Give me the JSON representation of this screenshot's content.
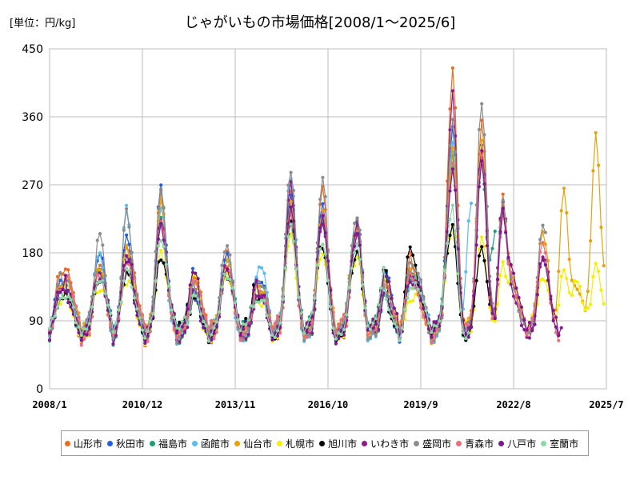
{
  "header": {
    "unit": "[単位：円/kg]",
    "title": "じゃがいもの市場価格[2008/1～2025/6]"
  },
  "chart_data": {
    "type": "line",
    "title": "じゃがいもの市場価格[2008/1～2025/6]",
    "unit": "[単位：円/kg]",
    "xlabel": "",
    "ylabel": "",
    "ylim": [
      0,
      450
    ],
    "yticks": [
      0,
      90,
      180,
      270,
      360,
      450
    ],
    "xlim": [
      "2008/1",
      "2025/7"
    ],
    "xticks": [
      "2008/1",
      "2010/12",
      "2013/11",
      "2016/10",
      "2019/9",
      "2022/8",
      "2025/7"
    ],
    "grid": true,
    "legend_position": "bottom",
    "series": [
      {
        "name": "山形市",
        "color": "#ef6c1f",
        "end": "2022/7",
        "peaks": {
          "2008/5": 157,
          "2009/8": 165,
          "2010/6": 190,
          "2011/7": 260,
          "2013/8": 180,
          "2014/9": 125,
          "2015/8": 262,
          "2016/8": 265,
          "2017/9": 225,
          "2019/5": 175,
          "2020/9": 425,
          "2021/8": 355,
          "2022/4": 255
        }
      },
      {
        "name": "秋田市",
        "color": "#1f5fe0",
        "end": "2022/4",
        "peaks": {
          "2008/5": 145,
          "2009/8": 178,
          "2010/6": 205,
          "2011/7": 265,
          "2013/8": 175,
          "2014/9": 140,
          "2015/8": 255,
          "2016/8": 240,
          "2017/9": 220,
          "2019/5": 160,
          "2020/9": 345,
          "2021/8": 320,
          "2022/4": 230
        }
      },
      {
        "name": "福島市",
        "color": "#1f9f73",
        "end": "2022/1",
        "peaks": {
          "2008/5": 135,
          "2009/8": 155,
          "2010/6": 175,
          "2011/7": 230,
          "2013/8": 160,
          "2014/9": 125,
          "2015/8": 230,
          "2016/8": 225,
          "2017/9": 210,
          "2019/5": 145,
          "2020/9": 310,
          "2021/8": 300,
          "2022/1": 210
        }
      },
      {
        "name": "函館市",
        "color": "#5bbbf0",
        "end": "2021/4",
        "peaks": {
          "2008/5": 130,
          "2009/8": 175,
          "2010/6": 240,
          "2011/7": 240,
          "2013/8": 170,
          "2014/9": 165,
          "2015/8": 282,
          "2016/8": 230,
          "2017/9": 215,
          "2019/5": 150,
          "2020/9": 330,
          "2021/4": 250
        }
      },
      {
        "name": "仙台市",
        "color": "#e8a20c",
        "end": "2025/6",
        "peaks": {
          "2008/5": 140,
          "2009/8": 160,
          "2010/6": 185,
          "2011/7": 250,
          "2013/8": 170,
          "2014/9": 130,
          "2015/8": 250,
          "2016/8": 235,
          "2017/9": 215,
          "2019/5": 155,
          "2020/9": 320,
          "2021/8": 330,
          "2022/4": 245,
          "2023/7": 205,
          "2024/3": 270,
          "2025/3": 340
        }
      },
      {
        "name": "札幌市",
        "color": "#f5ef00",
        "end": "2025/6",
        "peaks": {
          "2008/5": 115,
          "2009/8": 130,
          "2010/6": 140,
          "2011/7": 180,
          "2013/8": 150,
          "2014/9": 110,
          "2015/8": 205,
          "2016/8": 175,
          "2017/9": 175,
          "2019/5": 120,
          "2020/9": 215,
          "2021/8": 200,
          "2022/4": 165,
          "2023/7": 150,
          "2024/3": 160,
          "2025/3": 165
        }
      },
      {
        "name": "旭川市",
        "color": "#000000",
        "end": "2021/11",
        "peaks": {
          "2008/5": 120,
          "2009/8": 140,
          "2010/6": 155,
          "2011/7": 175,
          "2013/8": 150,
          "2014/9": 120,
          "2015/8": 220,
          "2016/8": 190,
          "2017/9": 180,
          "2019/5": 190,
          "2020/9": 215,
          "2021/8": 185
        }
      },
      {
        "name": "いわき市",
        "color": "#8a1c8a",
        "end": "2024/2",
        "peaks": {
          "2008/5": 130,
          "2009/8": 150,
          "2010/6": 175,
          "2011/7": 225,
          "2013/8": 160,
          "2014/9": 120,
          "2015/8": 270,
          "2016/8": 220,
          "2017/9": 215,
          "2019/5": 150,
          "2020/9": 390,
          "2021/8": 320,
          "2022/4": 250,
          "2023/7": 175
        }
      },
      {
        "name": "盛岡市",
        "color": "#8c8c8c",
        "end": "2023/8",
        "peaks": {
          "2008/5": 150,
          "2009/8": 210,
          "2010/6": 235,
          "2011/7": 265,
          "2013/8": 190,
          "2014/9": 140,
          "2015/8": 290,
          "2016/8": 280,
          "2017/9": 230,
          "2019/5": 165,
          "2020/9": 360,
          "2021/8": 380,
          "2022/4": 250,
          "2023/7": 215
        }
      },
      {
        "name": "青森市",
        "color": "#e5717f",
        "end": "2024/1",
        "peaks": {
          "2008/5": 135,
          "2009/8": 150,
          "2010/6": 170,
          "2011/7": 220,
          "2013/8": 160,
          "2014/9": 120,
          "2015/8": 235,
          "2016/8": 230,
          "2017/9": 210,
          "2019/5": 150,
          "2020/9": 300,
          "2021/8": 310,
          "2022/4": 230,
          "2023/7": 190
        }
      },
      {
        "name": "八戸市",
        "color": "#7a1890",
        "end": "2024/1",
        "peaks": {
          "2008/5": 130,
          "2009/8": 145,
          "2010/6": 170,
          "2011/7": 215,
          "2013/8": 155,
          "2014/9": 120,
          "2015/8": 240,
          "2016/8": 225,
          "2017/9": 205,
          "2019/5": 145,
          "2020/9": 290,
          "2021/8": 300,
          "2022/4": 235,
          "2023/7": 175
        }
      },
      {
        "name": "室蘭市",
        "color": "#8ed6a6",
        "end": "2021/3",
        "peaks": {
          "2008/5": 120,
          "2009/8": 140,
          "2010/6": 160,
          "2011/7": 200,
          "2013/8": 150,
          "2014/9": 115,
          "2015/8": 215,
          "2016/8": 195,
          "2017/9": 190,
          "2019/5": 135,
          "2020/9": 240
        }
      }
    ]
  }
}
